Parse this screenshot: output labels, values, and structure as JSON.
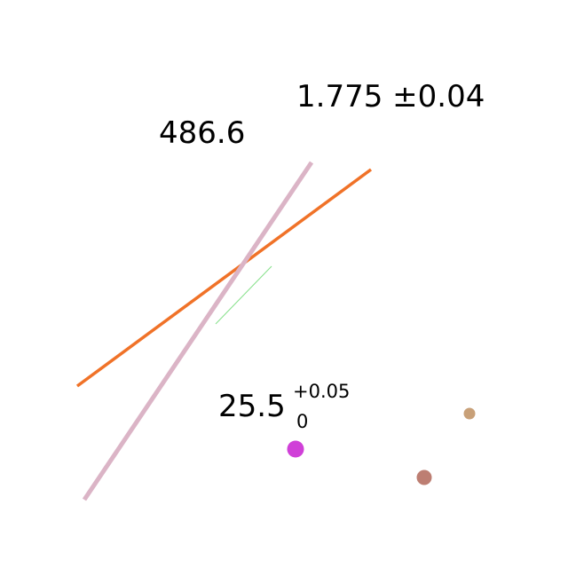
{
  "labels": {
    "top_right": "1.775 ±0.04",
    "top_left": "486.6",
    "bottom_main": "25.5",
    "bottom_superscript": "+0.05",
    "bottom_subscript": "0"
  },
  "colors": {
    "background": "#ffffff",
    "orange_line": "#f07228",
    "pink_line": "#dbb4c6",
    "green_line": "#86e08a",
    "magenta_dot": "#d040d8",
    "brown_dot": "#bd7e72",
    "tan_dot": "#c8a078"
  }
}
